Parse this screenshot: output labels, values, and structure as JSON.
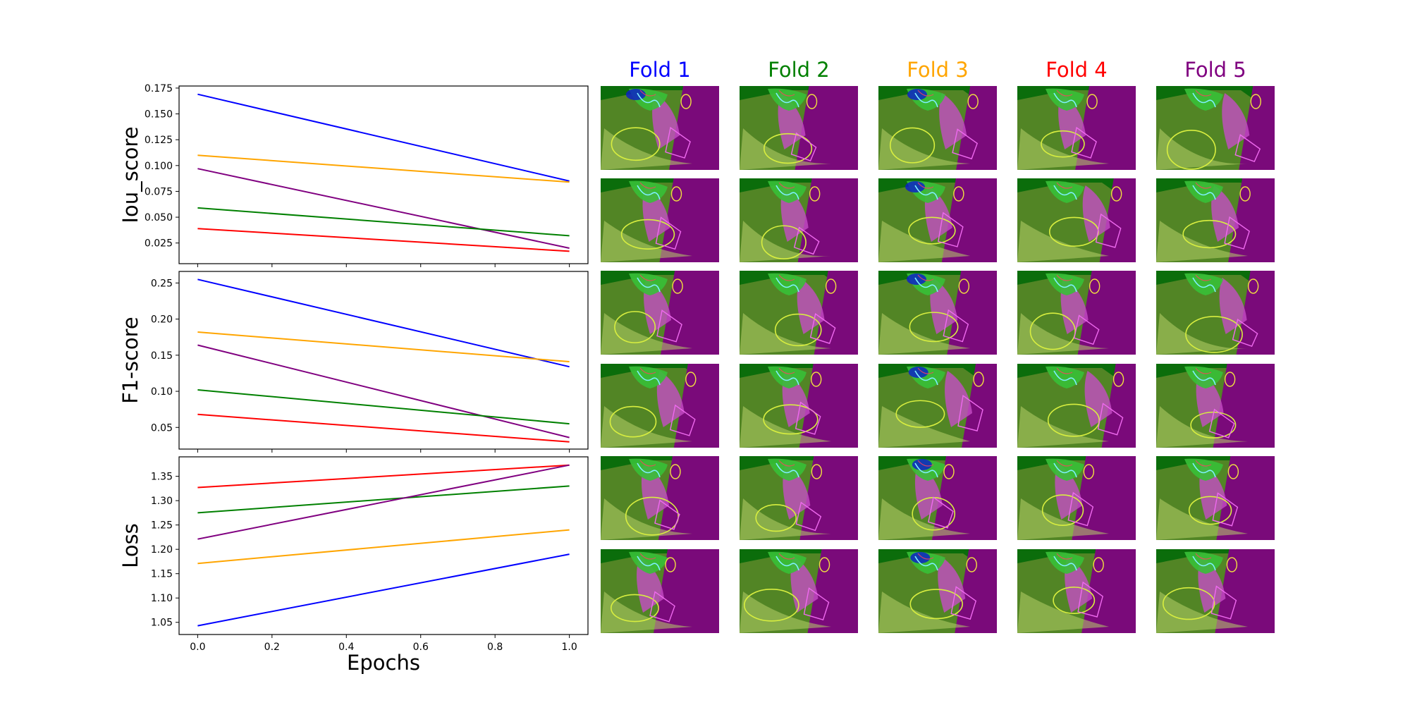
{
  "colors": {
    "fold1": "#0000ff",
    "fold2": "#008000",
    "fold3": "#ffa500",
    "fold4": "#ff0000",
    "fold5": "#800080"
  },
  "fold_titles": [
    "Fold 1",
    "Fold 2",
    "Fold 3",
    "Fold 4",
    "Fold 5"
  ],
  "thumbnails": {
    "rows": 6,
    "columns": 5,
    "content": "ultrasound image with green/magenta segmentation overlay and contour outlines"
  },
  "chart_data": [
    {
      "type": "line",
      "ylabel": "Iou_score",
      "xlabel": "",
      "x": [
        0.0,
        1.0
      ],
      "xlim": [
        -0.05,
        1.05
      ],
      "ylim": [
        0.005,
        0.177
      ],
      "xticks": [
        "0.0",
        "0.2",
        "0.4",
        "0.6",
        "0.8",
        "1.0"
      ],
      "yticks": [
        "0.025",
        "0.050",
        "0.075",
        "0.100",
        "0.125",
        "0.150",
        "0.175"
      ],
      "show_xtick_labels": false,
      "series": [
        {
          "color": "#0000ff",
          "values": [
            0.169,
            0.085
          ]
        },
        {
          "color": "#ffa500",
          "values": [
            0.11,
            0.084
          ]
        },
        {
          "color": "#800080",
          "values": [
            0.097,
            0.02
          ]
        },
        {
          "color": "#008000",
          "values": [
            0.059,
            0.032
          ]
        },
        {
          "color": "#ff0000",
          "values": [
            0.039,
            0.017
          ]
        }
      ]
    },
    {
      "type": "line",
      "ylabel": "F1-score",
      "xlabel": "",
      "x": [
        0.0,
        1.0
      ],
      "xlim": [
        -0.05,
        1.05
      ],
      "ylim": [
        0.02,
        0.266
      ],
      "xticks": [
        "0.0",
        "0.2",
        "0.4",
        "0.6",
        "0.8",
        "1.0"
      ],
      "yticks": [
        "0.05",
        "0.10",
        "0.15",
        "0.20",
        "0.25"
      ],
      "show_xtick_labels": false,
      "series": [
        {
          "color": "#0000ff",
          "values": [
            0.255,
            0.134
          ]
        },
        {
          "color": "#ffa500",
          "values": [
            0.182,
            0.141
          ]
        },
        {
          "color": "#800080",
          "values": [
            0.164,
            0.036
          ]
        },
        {
          "color": "#008000",
          "values": [
            0.102,
            0.055
          ]
        },
        {
          "color": "#ff0000",
          "values": [
            0.068,
            0.03
          ]
        }
      ]
    },
    {
      "type": "line",
      "ylabel": "Loss",
      "xlabel": "Epochs",
      "x": [
        0.0,
        1.0
      ],
      "xlim": [
        -0.05,
        1.05
      ],
      "ylim": [
        1.025,
        1.39
      ],
      "xticks": [
        "0.0",
        "0.2",
        "0.4",
        "0.6",
        "0.8",
        "1.0"
      ],
      "yticks": [
        "1.05",
        "1.10",
        "1.15",
        "1.20",
        "1.25",
        "1.30",
        "1.35"
      ],
      "show_xtick_labels": true,
      "series": [
        {
          "color": "#ff0000",
          "values": [
            1.327,
            1.373
          ]
        },
        {
          "color": "#008000",
          "values": [
            1.275,
            1.33
          ]
        },
        {
          "color": "#800080",
          "values": [
            1.221,
            1.373
          ]
        },
        {
          "color": "#ffa500",
          "values": [
            1.171,
            1.24
          ]
        },
        {
          "color": "#0000ff",
          "values": [
            1.043,
            1.19
          ]
        }
      ]
    }
  ]
}
